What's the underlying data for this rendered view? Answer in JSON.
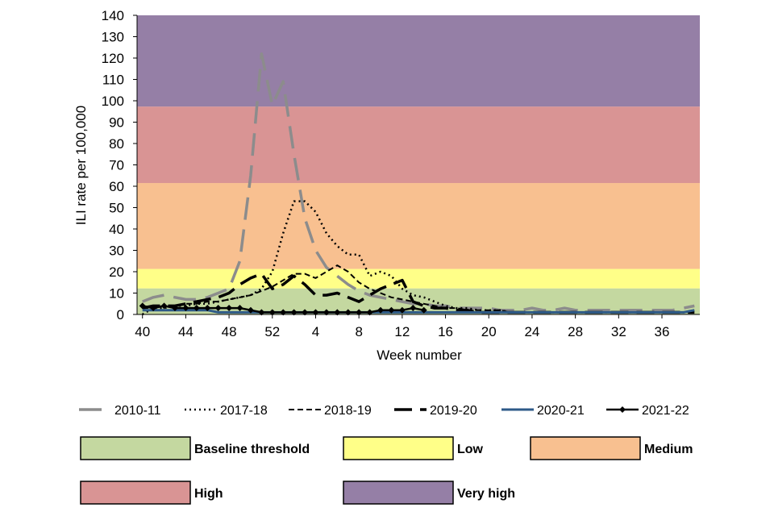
{
  "chart_data": {
    "type": "line",
    "xlabel": "Week number",
    "ylabel": "ILI rate per 100,000",
    "ylim": [
      0,
      140
    ],
    "y_ticks": [
      0,
      10,
      20,
      30,
      40,
      50,
      60,
      70,
      80,
      90,
      100,
      110,
      120,
      130,
      140
    ],
    "x_tick_labels": [
      "40",
      "44",
      "48",
      "52",
      "4",
      "8",
      "12",
      "16",
      "20",
      "24",
      "28",
      "32",
      "36"
    ],
    "weeks": [
      40,
      41,
      42,
      43,
      44,
      45,
      46,
      47,
      48,
      49,
      50,
      51,
      52,
      1,
      2,
      3,
      4,
      5,
      6,
      7,
      8,
      9,
      10,
      11,
      12,
      13,
      14,
      15,
      16,
      17,
      18,
      19,
      20,
      21,
      22,
      23,
      24,
      25,
      26,
      27,
      28,
      29,
      30,
      31,
      32,
      33,
      34,
      35,
      36,
      37,
      38,
      39
    ],
    "thresholds": [
      {
        "name": "Baseline threshold",
        "from": 0,
        "to": 12.2,
        "color": "#c4d8a0"
      },
      {
        "name": "Low",
        "from": 12.2,
        "to": 21.3,
        "color": "#ffff88"
      },
      {
        "name": "Medium",
        "from": 21.3,
        "to": 61.5,
        "color": "#f8c090"
      },
      {
        "name": "High",
        "from": 61.5,
        "to": 97.3,
        "color": "#d99494"
      },
      {
        "name": "Very high",
        "from": 97.3,
        "to": 140,
        "color": "#957fa6"
      }
    ],
    "series": [
      {
        "name": "2010-11",
        "color": "#8c8c8c",
        "dash": "28,12",
        "width": 3.5,
        "values": [
          6,
          8,
          9,
          8,
          7,
          7,
          8,
          10,
          12,
          25,
          65,
          122,
          98,
          109,
          75,
          45,
          30,
          22,
          18,
          14,
          11,
          9,
          8,
          7,
          6,
          5,
          5,
          4,
          4,
          3,
          3,
          3,
          3,
          2,
          2,
          2,
          3,
          2,
          2,
          3,
          2,
          2,
          2,
          2,
          2,
          2,
          2,
          2,
          2,
          2,
          3,
          4
        ]
      },
      {
        "name": "2017-18",
        "color": "#000000",
        "dash": "2,4",
        "width": 2.5,
        "values": [
          0,
          3,
          3,
          4,
          4,
          5,
          5,
          6,
          7,
          8,
          9,
          12,
          20,
          38,
          53,
          53,
          48,
          38,
          32,
          28,
          28,
          18,
          20,
          18,
          12,
          9,
          8,
          6,
          4,
          3,
          3,
          2,
          2,
          2,
          1,
          1,
          1,
          1,
          1,
          1,
          1,
          1,
          1,
          1,
          1,
          1,
          1,
          1,
          1,
          1,
          1,
          1
        ]
      },
      {
        "name": "2018-19",
        "color": "#000000",
        "dash": "7,4",
        "width": 2,
        "values": [
          3,
          3,
          4,
          4,
          5,
          5,
          6,
          6,
          7,
          8,
          9,
          11,
          13,
          16,
          19,
          19,
          17,
          20,
          23,
          20,
          15,
          12,
          10,
          8,
          7,
          6,
          5,
          4,
          3,
          3,
          2,
          2,
          2,
          2,
          1,
          1,
          1,
          1,
          1,
          1,
          1,
          1,
          1,
          1,
          1,
          1,
          1,
          1,
          1,
          1,
          1,
          2
        ]
      },
      {
        "name": "2019-20",
        "color": "#000000",
        "dash": "22,10",
        "width": 3.5,
        "values": [
          3,
          4,
          4,
          4,
          5,
          6,
          7,
          8,
          10,
          14,
          17,
          19,
          12,
          14,
          18,
          14,
          9,
          9,
          10,
          8,
          6,
          9,
          12,
          14,
          16,
          6,
          4,
          3,
          3,
          2,
          2,
          1,
          1,
          1,
          1,
          1,
          1,
          1,
          1,
          1,
          1,
          1,
          1,
          1,
          1,
          1,
          1,
          1,
          1,
          1,
          1,
          1
        ]
      },
      {
        "name": "2020-21",
        "color": "#2e5a88",
        "dash": "",
        "width": 3,
        "values": [
          2,
          2,
          2,
          2,
          2,
          2,
          2,
          1,
          1,
          1,
          1,
          1,
          1,
          1,
          1,
          1,
          1,
          1,
          1,
          1,
          1,
          1,
          1,
          1,
          1,
          1,
          1,
          1,
          1,
          1,
          1,
          1,
          1,
          1,
          1,
          1,
          1,
          1,
          1,
          1,
          1,
          1,
          1,
          1,
          1,
          1,
          1,
          1,
          1,
          1,
          1,
          2
        ]
      },
      {
        "name": "2021-22",
        "color": "#000000",
        "dash": "",
        "width": 2.5,
        "markers": true,
        "values": [
          4,
          3,
          4,
          3,
          3,
          3,
          3,
          3,
          3,
          3,
          2,
          1,
          1,
          1,
          1,
          1,
          1,
          1,
          1,
          1,
          1,
          1,
          2,
          2,
          2,
          3,
          2
        ]
      }
    ]
  }
}
